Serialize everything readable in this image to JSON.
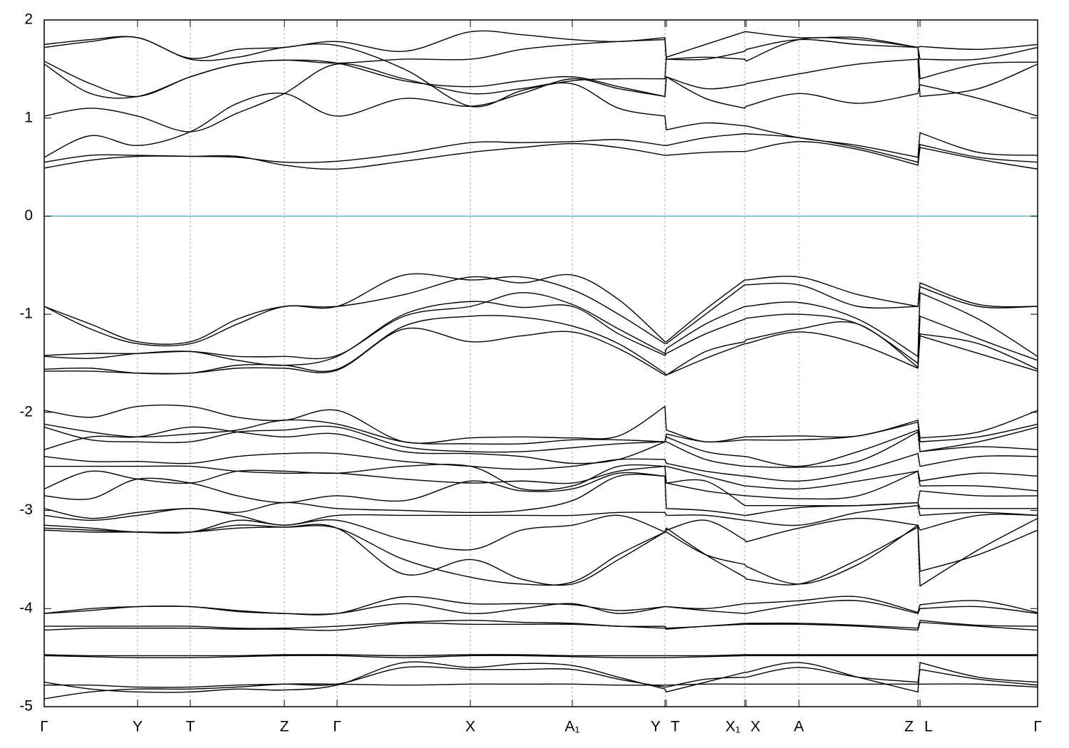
{
  "chart_data": {
    "type": "line",
    "xlim": [
      0,
      1394
    ],
    "ylim": [
      -5,
      2
    ],
    "yticks": [
      -5,
      -4,
      -3,
      -2,
      -1,
      0,
      1,
      2
    ],
    "xticks": [
      {
        "value": 0,
        "label": "Γ"
      },
      {
        "value": 131,
        "label": "Y"
      },
      {
        "value": 205,
        "label": "T"
      },
      {
        "value": 337,
        "label": "Z"
      },
      {
        "value": 411,
        "label": "Γ"
      },
      {
        "value": 598,
        "label": "X"
      },
      {
        "value": 741,
        "label": "A₁"
      },
      {
        "value": 871,
        "label": "Y"
      },
      {
        "value": 873,
        "label": "T"
      },
      {
        "value": 983,
        "label": "X₁"
      },
      {
        "value": 985,
        "label": "X"
      },
      {
        "value": 1059,
        "label": "A"
      },
      {
        "value": 1226,
        "label": "Z"
      },
      {
        "value": 1229,
        "label": "L"
      },
      {
        "value": 1394,
        "label": "Γ"
      }
    ],
    "grid": true,
    "color": "#000000",
    "reference_line": {
      "y": 0,
      "color": "#5ab4c8"
    },
    "x": [
      0,
      65,
      131,
      205,
      271,
      337,
      411,
      505,
      598,
      670,
      741,
      806,
      871,
      873,
      928,
      983,
      985,
      1059,
      1142,
      1226,
      1229,
      1311,
      1394
    ],
    "series": [
      {
        "values": [
          0.49,
          0.57,
          0.61,
          0.61,
          0.61,
          0.52,
          0.48,
          0.56,
          0.65,
          0.7,
          0.74,
          0.7,
          0.62,
          0.62,
          0.65,
          0.66,
          0.66,
          0.76,
          0.68,
          0.52,
          0.7,
          0.58,
          0.48
        ]
      },
      {
        "values": [
          0.55,
          0.62,
          0.62,
          0.61,
          0.6,
          0.55,
          0.56,
          0.64,
          0.75,
          0.75,
          0.76,
          0.78,
          0.72,
          0.72,
          0.8,
          0.84,
          0.84,
          0.8,
          0.7,
          0.55,
          0.73,
          0.6,
          0.55
        ]
      },
      {
        "values": [
          0.6,
          0.82,
          0.72,
          0.86,
          1.15,
          1.25,
          1.02,
          1.2,
          1.12,
          1.25,
          1.4,
          1.3,
          1.22,
          1.42,
          1.2,
          1.1,
          1.12,
          1.25,
          1.15,
          1.25,
          1.34,
          1.2,
          1.02
        ]
      },
      {
        "values": [
          1.02,
          1.1,
          1.02,
          0.86,
          1.05,
          1.25,
          1.55,
          1.4,
          1.25,
          1.3,
          1.35,
          1.1,
          1.02,
          0.88,
          0.95,
          0.92,
          0.92,
          0.8,
          0.72,
          0.6,
          0.85,
          0.65,
          0.62
        ]
      },
      {
        "values": [
          1.55,
          1.25,
          1.22,
          1.42,
          1.55,
          1.59,
          1.56,
          1.38,
          1.32,
          1.38,
          1.42,
          1.32,
          1.22,
          1.42,
          1.3,
          1.34,
          1.35,
          1.45,
          1.55,
          1.6,
          1.22,
          1.3,
          1.55
        ]
      },
      {
        "values": [
          1.58,
          1.35,
          1.22,
          1.42,
          1.55,
          1.59,
          1.56,
          1.6,
          1.6,
          1.7,
          1.75,
          1.78,
          1.8,
          1.6,
          1.6,
          1.68,
          1.7,
          1.8,
          1.75,
          1.72,
          1.4,
          1.55,
          1.57
        ]
      },
      {
        "values": [
          1.72,
          1.78,
          1.82,
          1.6,
          1.62,
          1.72,
          1.74,
          1.5,
          1.12,
          1.28,
          1.38,
          1.4,
          1.4,
          1.62,
          1.75,
          1.88,
          1.88,
          1.82,
          1.82,
          1.72,
          1.6,
          1.6,
          1.72
        ]
      },
      {
        "values": [
          1.75,
          1.8,
          1.82,
          1.61,
          1.7,
          1.72,
          1.78,
          1.68,
          1.88,
          1.85,
          1.8,
          1.78,
          1.82,
          1.6,
          1.62,
          1.6,
          1.58,
          1.8,
          1.8,
          1.72,
          1.73,
          1.7,
          1.75
        ]
      },
      {
        "values": [
          -0.92,
          -1.1,
          -1.28,
          -1.28,
          -1.05,
          -0.92,
          -0.92,
          -0.8,
          -0.62,
          -0.68,
          -0.6,
          -0.85,
          -1.28,
          -1.28,
          -0.95,
          -0.65,
          -0.65,
          -0.62,
          -0.8,
          -0.92,
          -0.68,
          -0.9,
          -0.92
        ]
      },
      {
        "values": [
          -0.92,
          -1.15,
          -1.3,
          -1.3,
          -1.1,
          -0.92,
          -0.92,
          -0.6,
          -0.65,
          -0.62,
          -0.75,
          -1.0,
          -1.3,
          -1.3,
          -1.0,
          -0.7,
          -0.7,
          -0.7,
          -0.92,
          -0.92,
          -0.72,
          -0.92,
          -0.92
        ]
      },
      {
        "values": [
          -1.42,
          -1.4,
          -1.4,
          -1.38,
          -1.43,
          -1.43,
          -1.42,
          -1.02,
          -0.92,
          -0.78,
          -0.9,
          -1.15,
          -1.4,
          -1.35,
          -1.1,
          -0.92,
          -0.92,
          -0.88,
          -1.05,
          -1.43,
          -0.78,
          -1.05,
          -1.43
        ]
      },
      {
        "values": [
          -1.43,
          -1.45,
          -1.4,
          -1.38,
          -1.47,
          -1.52,
          -1.43,
          -1.0,
          -0.87,
          -0.93,
          -0.92,
          -1.2,
          -1.42,
          -1.4,
          -1.2,
          -1.05,
          -1.04,
          -1.0,
          -1.1,
          -1.5,
          -1.02,
          -1.25,
          -1.47
        ]
      },
      {
        "values": [
          -1.56,
          -1.55,
          -1.6,
          -1.6,
          -1.52,
          -1.52,
          -1.56,
          -1.12,
          -1.02,
          -1.03,
          -1.12,
          -1.3,
          -1.6,
          -1.62,
          -1.38,
          -1.28,
          -1.26,
          -1.15,
          -1.1,
          -1.54,
          -1.2,
          -1.3,
          -1.56
        ]
      },
      {
        "values": [
          -1.58,
          -1.58,
          -1.6,
          -1.6,
          -1.55,
          -1.55,
          -1.57,
          -1.15,
          -1.28,
          -1.22,
          -1.18,
          -1.35,
          -1.62,
          -1.62,
          -1.45,
          -1.3,
          -1.3,
          -1.18,
          -1.3,
          -1.55,
          -1.22,
          -1.4,
          -1.58
        ]
      },
      {
        "values": [
          -1.98,
          -2.05,
          -1.94,
          -1.94,
          -2.05,
          -2.08,
          -1.98,
          -2.3,
          -2.26,
          -2.25,
          -2.26,
          -2.24,
          -1.94,
          -2.18,
          -2.3,
          -2.25,
          -2.25,
          -2.24,
          -2.24,
          -2.08,
          -2.26,
          -2.2,
          -1.98
        ]
      },
      {
        "values": [
          -2.12,
          -2.2,
          -2.25,
          -2.22,
          -2.18,
          -2.08,
          -2.12,
          -2.3,
          -2.32,
          -2.32,
          -2.28,
          -2.28,
          -2.3,
          -2.22,
          -2.3,
          -2.28,
          -2.28,
          -2.28,
          -2.24,
          -2.1,
          -2.3,
          -2.25,
          -2.12
        ]
      },
      {
        "values": [
          -2.15,
          -2.28,
          -2.3,
          -2.3,
          -2.2,
          -2.18,
          -2.15,
          -2.35,
          -2.4,
          -2.4,
          -2.36,
          -2.32,
          -2.3,
          -2.25,
          -2.4,
          -2.45,
          -2.45,
          -2.55,
          -2.4,
          -2.18,
          -2.4,
          -2.3,
          -2.15
        ]
      },
      {
        "values": [
          -2.38,
          -2.25,
          -2.25,
          -2.15,
          -2.2,
          -2.25,
          -2.22,
          -2.4,
          -2.42,
          -2.45,
          -2.52,
          -2.48,
          -2.3,
          -2.3,
          -2.48,
          -2.55,
          -2.55,
          -2.56,
          -2.5,
          -2.2,
          -2.4,
          -2.35,
          -2.38
        ]
      },
      {
        "values": [
          -2.45,
          -2.5,
          -2.5,
          -2.52,
          -2.45,
          -2.42,
          -2.42,
          -2.5,
          -2.55,
          -2.58,
          -2.55,
          -2.48,
          -2.48,
          -2.52,
          -2.6,
          -2.65,
          -2.65,
          -2.7,
          -2.6,
          -2.42,
          -2.55,
          -2.45,
          -2.45
        ]
      },
      {
        "values": [
          -2.55,
          -2.55,
          -2.55,
          -2.55,
          -2.6,
          -2.62,
          -2.62,
          -2.68,
          -2.72,
          -2.7,
          -2.72,
          -2.6,
          -2.55,
          -2.55,
          -2.65,
          -2.75,
          -2.75,
          -2.78,
          -2.7,
          -2.6,
          -2.7,
          -2.62,
          -2.65
        ]
      },
      {
        "values": [
          -2.78,
          -2.6,
          -2.68,
          -2.72,
          -2.6,
          -2.6,
          -2.62,
          -2.55,
          -2.55,
          -2.78,
          -2.75,
          -2.55,
          -2.55,
          -2.72,
          -2.8,
          -2.85,
          -2.85,
          -2.88,
          -2.85,
          -2.6,
          -2.75,
          -2.75,
          -2.8
        ]
      },
      {
        "values": [
          -2.85,
          -2.88,
          -2.68,
          -2.72,
          -2.85,
          -2.92,
          -2.85,
          -2.9,
          -2.7,
          -2.8,
          -2.78,
          -2.62,
          -2.65,
          -2.72,
          -2.7,
          -2.95,
          -2.95,
          -2.95,
          -2.95,
          -2.92,
          -2.8,
          -2.85,
          -2.85
        ]
      },
      {
        "values": [
          -2.98,
          -3.08,
          -3.02,
          -2.98,
          -3.02,
          -2.92,
          -2.98,
          -3.0,
          -3.02,
          -3.0,
          -2.9,
          -2.65,
          -2.65,
          -2.98,
          -3.0,
          -3.05,
          -3.05,
          -2.97,
          -2.95,
          -2.92,
          -2.98,
          -2.98,
          -2.98
        ]
      },
      {
        "values": [
          -3.05,
          -3.1,
          -3.05,
          -2.98,
          -3.05,
          -3.15,
          -3.05,
          -3.05,
          -3.05,
          -3.05,
          -3.05,
          -3.02,
          -3.02,
          -3.05,
          -3.05,
          -3.1,
          -3.1,
          -3.15,
          -3.02,
          -2.95,
          -3.05,
          -3.02,
          -3.05
        ]
      },
      {
        "values": [
          -3.15,
          -3.18,
          -3.22,
          -3.22,
          -3.1,
          -3.15,
          -3.1,
          -3.3,
          -3.4,
          -3.2,
          -3.15,
          -3.05,
          -3.22,
          -3.2,
          -3.1,
          -3.3,
          -3.32,
          -3.18,
          -3.08,
          -3.15,
          -3.2,
          -3.05,
          -3.05
        ]
      },
      {
        "values": [
          -3.18,
          -3.2,
          -3.22,
          -3.22,
          -3.15,
          -3.17,
          -3.18,
          -3.5,
          -3.68,
          -3.75,
          -3.73,
          -3.45,
          -3.22,
          -3.22,
          -3.45,
          -3.55,
          -3.57,
          -3.75,
          -3.55,
          -3.15,
          -3.62,
          -3.45,
          -3.2
        ]
      },
      {
        "values": [
          -3.2,
          -3.22,
          -3.22,
          -3.22,
          -3.18,
          -3.17,
          -3.18,
          -3.65,
          -3.5,
          -3.7,
          -3.75,
          -3.5,
          -3.22,
          -3.18,
          -3.45,
          -3.68,
          -3.7,
          -3.75,
          -3.5,
          -3.17,
          -3.77,
          -3.4,
          -3.08
        ]
      },
      {
        "values": [
          -4.05,
          -4.0,
          -3.98,
          -3.98,
          -4.02,
          -4.05,
          -4.05,
          -3.88,
          -3.95,
          -3.95,
          -3.96,
          -4.02,
          -3.98,
          -3.98,
          -4.0,
          -3.95,
          -3.95,
          -3.92,
          -3.88,
          -4.04,
          -3.96,
          -3.92,
          -4.04
        ]
      },
      {
        "values": [
          -4.05,
          -4.02,
          -3.98,
          -3.98,
          -4.03,
          -4.05,
          -4.05,
          -3.95,
          -4.05,
          -4.0,
          -3.95,
          -4.05,
          -3.98,
          -3.98,
          -4.02,
          -4.05,
          -4.05,
          -3.96,
          -3.92,
          -4.05,
          -4.0,
          -3.98,
          -4.05
        ]
      },
      {
        "values": [
          -4.18,
          -4.18,
          -4.18,
          -4.18,
          -4.2,
          -4.2,
          -4.18,
          -4.14,
          -4.12,
          -4.14,
          -4.15,
          -4.18,
          -4.18,
          -4.2,
          -4.18,
          -4.15,
          -4.15,
          -4.15,
          -4.17,
          -4.2,
          -4.12,
          -4.17,
          -4.18
        ]
      },
      {
        "values": [
          -4.22,
          -4.2,
          -4.2,
          -4.2,
          -4.21,
          -4.21,
          -4.22,
          -4.15,
          -4.16,
          -4.16,
          -4.16,
          -4.18,
          -4.2,
          -4.21,
          -4.18,
          -4.16,
          -4.16,
          -4.16,
          -4.18,
          -4.22,
          -4.14,
          -4.18,
          -4.22
        ]
      },
      {
        "values": [
          -4.47,
          -4.48,
          -4.48,
          -4.48,
          -4.48,
          -4.47,
          -4.47,
          -4.48,
          -4.47,
          -4.47,
          -4.48,
          -4.48,
          -4.48,
          -4.48,
          -4.48,
          -4.47,
          -4.47,
          -4.47,
          -4.47,
          -4.47,
          -4.47,
          -4.47,
          -4.47
        ]
      },
      {
        "values": [
          -4.48,
          -4.49,
          -4.5,
          -4.5,
          -4.49,
          -4.48,
          -4.48,
          -4.5,
          -4.48,
          -4.48,
          -4.49,
          -4.5,
          -4.5,
          -4.5,
          -4.49,
          -4.48,
          -4.48,
          -4.48,
          -4.48,
          -4.48,
          -4.48,
          -4.48,
          -4.48
        ]
      },
      {
        "values": [
          -4.75,
          -4.82,
          -4.85,
          -4.85,
          -4.82,
          -4.83,
          -4.78,
          -4.55,
          -4.6,
          -4.56,
          -4.58,
          -4.7,
          -4.82,
          -4.85,
          -4.75,
          -4.65,
          -4.65,
          -4.55,
          -4.7,
          -4.85,
          -4.55,
          -4.7,
          -4.75
        ]
      },
      {
        "values": [
          -4.78,
          -4.78,
          -4.8,
          -4.8,
          -4.78,
          -4.77,
          -4.77,
          -4.6,
          -4.62,
          -4.62,
          -4.62,
          -4.72,
          -4.8,
          -4.8,
          -4.72,
          -4.7,
          -4.7,
          -4.6,
          -4.7,
          -4.75,
          -4.62,
          -4.72,
          -4.78
        ]
      },
      {
        "values": [
          -4.92,
          -4.85,
          -4.82,
          -4.82,
          -4.8,
          -4.77,
          -4.77,
          -4.78,
          -4.77,
          -4.77,
          -4.77,
          -4.78,
          -4.78,
          -4.78,
          -4.77,
          -4.77,
          -4.77,
          -4.77,
          -4.77,
          -4.77,
          -4.77,
          -4.77,
          -4.8
        ]
      }
    ]
  }
}
